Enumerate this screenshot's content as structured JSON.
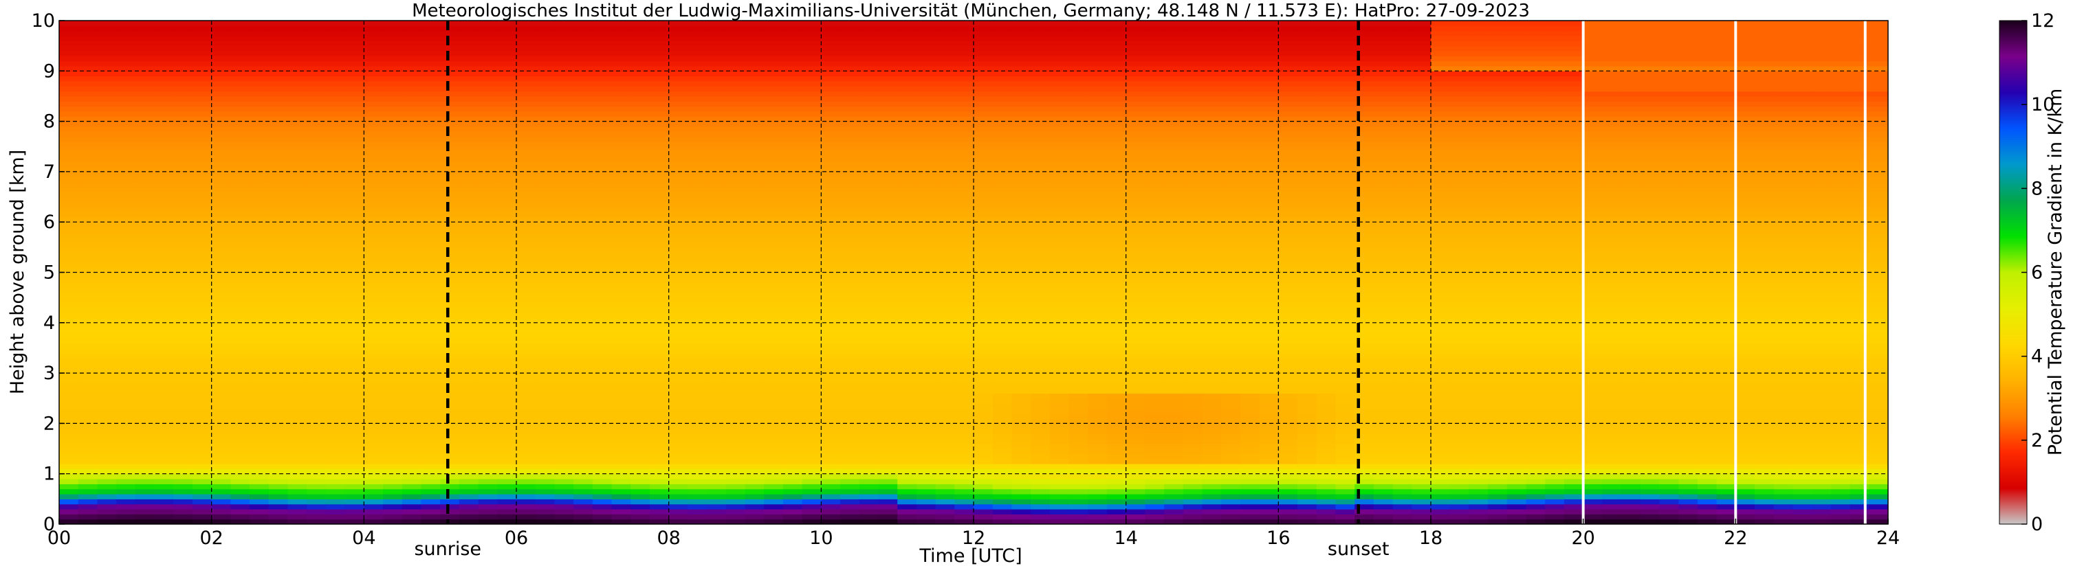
{
  "chart_data": {
    "type": "heatmap",
    "title": "Meteorologisches Institut der Ludwig-Maximilians-Universität (München, Germany; 48.148 N / 11.573 E):    HatPro: 27-09-2023",
    "xlabel": "Time [UTC]",
    "ylabel": "Height above ground [km]",
    "colorbar_label": "Potential Temperature Gradient in K/km",
    "xlim": [
      0,
      24
    ],
    "ylim": [
      0,
      10
    ],
    "clim": [
      0,
      12
    ],
    "x_ticks": [
      "00",
      "02",
      "04",
      "06",
      "08",
      "10",
      "12",
      "14",
      "16",
      "18",
      "20",
      "22",
      "24"
    ],
    "y_ticks": [
      "0",
      "1",
      "2",
      "3",
      "4",
      "5",
      "6",
      "7",
      "8",
      "9",
      "10"
    ],
    "colorbar_ticks": [
      "0",
      "2",
      "4",
      "6",
      "8",
      "10",
      "12"
    ],
    "grid": true,
    "events": [
      {
        "label": "sunrise",
        "time": 5.1
      },
      {
        "label": "sunset",
        "time": 17.05
      }
    ],
    "data_gaps": [
      20.0,
      22.0,
      23.7
    ],
    "colormap": [
      "#c8c8c8",
      "#d60000",
      "#ff2a00",
      "#ff8000",
      "#ffb300",
      "#ffd800",
      "#e6ef00",
      "#bff000",
      "#00e000",
      "#00a64d",
      "#0099cc",
      "#0055ff",
      "#2400b0",
      "#7a008a",
      "#1a001a"
    ],
    "profile": {
      "heights_km": [
        0.0,
        0.3,
        0.4,
        0.5,
        0.6,
        0.75,
        0.95,
        1.2,
        2.0,
        3.0,
        3.8,
        5.0,
        6.5,
        7.5,
        8.2,
        8.8,
        9.3,
        10.0
      ],
      "gradient_k_per_km": [
        12,
        11,
        10,
        8.5,
        7.2,
        6.5,
        5.5,
        4.1,
        3.8,
        3.9,
        4.2,
        3.8,
        3.2,
        2.9,
        2.4,
        1.9,
        1.2,
        0.8
      ]
    }
  }
}
